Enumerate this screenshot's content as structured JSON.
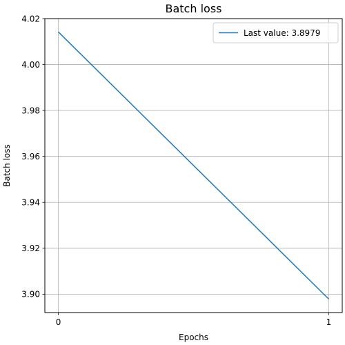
{
  "chart_data": {
    "type": "line",
    "title": "Batch loss",
    "xlabel": "Epochs",
    "ylabel": "Batch loss",
    "x": [
      0,
      1
    ],
    "series": [
      {
        "name": "Last value: 3.8979",
        "values": [
          4.0142,
          3.8979
        ],
        "color": "#1f77b4"
      }
    ],
    "xlim": [
      -0.05,
      1.05
    ],
    "ylim": [
      3.892,
      4.02
    ],
    "x_ticks": [
      0,
      1
    ],
    "x_tick_labels": [
      "0",
      "1"
    ],
    "y_ticks": [
      3.9,
      3.92,
      3.94,
      3.96,
      3.98,
      4.0,
      4.02
    ],
    "y_tick_labels": [
      "3.90",
      "3.92",
      "3.94",
      "3.96",
      "3.98",
      "4.00",
      "4.02"
    ],
    "grid": true,
    "legend_position": "top-right"
  }
}
